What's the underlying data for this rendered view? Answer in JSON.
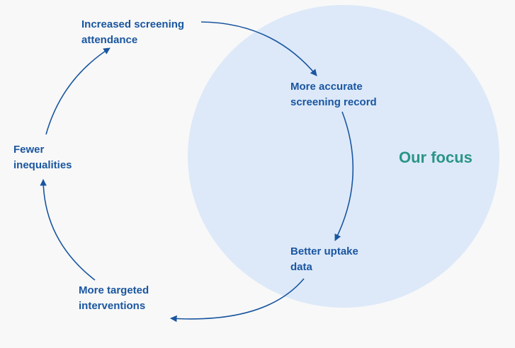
{
  "focus_label": "Our focus",
  "nodes": {
    "increased_screening_attendance": [
      "Increased screening",
      "attendance"
    ],
    "more_accurate_screening_record": [
      "More accurate",
      "screening record"
    ],
    "better_uptake_data": [
      "Better uptake",
      "data"
    ],
    "more_targeted_interventions": [
      "More targeted",
      "interventions"
    ],
    "fewer_inequalities": [
      "Fewer",
      "inequalities"
    ]
  },
  "colors": {
    "background": "#f8f8f8",
    "focus_circle": "#dde9f9",
    "node_text": "#1a56a0",
    "focus_text": "#2a9587",
    "arrow": "#1a56a0"
  }
}
